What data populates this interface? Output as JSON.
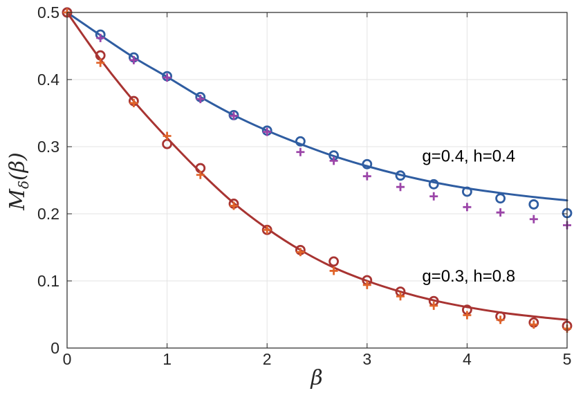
{
  "chart_data": {
    "type": "line",
    "xlabel": "β",
    "ylabel": "M_δ(β)",
    "xlim": [
      0,
      5
    ],
    "ylim": [
      0,
      0.5
    ],
    "xticks": [
      "0",
      "1",
      "2",
      "3",
      "4",
      "5"
    ],
    "yticks": [
      "0",
      "0.1",
      "0.2",
      "0.3",
      "0.4",
      "0.5"
    ],
    "grid": true,
    "annotations": [
      {
        "text": "g=0.4, h=0.4",
        "x": 3.55,
        "y": 0.286
      },
      {
        "text": "g=0.3, h=0.8",
        "x": 3.55,
        "y": 0.107
      }
    ],
    "series": [
      {
        "kind": "line",
        "color": "#2f5da1",
        "x": [
          0,
          0.3333,
          0.6667,
          1,
          1.3333,
          1.6667,
          2,
          2.3333,
          2.6667,
          3,
          3.3333,
          3.6667,
          4,
          4.3333,
          4.6667,
          5
        ],
        "values": [
          0.5,
          0.466,
          0.433,
          0.404,
          0.374,
          0.347,
          0.324,
          0.304,
          0.286,
          0.271,
          0.258,
          0.247,
          0.238,
          0.231,
          0.225,
          0.22
        ]
      },
      {
        "kind": "circle",
        "color": "#2f5da1",
        "x": [
          0,
          0.3333,
          0.6667,
          1,
          1.3333,
          1.6667,
          2,
          2.3333,
          2.6667,
          3,
          3.3333,
          3.6667,
          4,
          4.3333,
          4.6667,
          5
        ],
        "values": [
          0.5,
          0.467,
          0.433,
          0.405,
          0.374,
          0.347,
          0.324,
          0.308,
          0.287,
          0.274,
          0.257,
          0.244,
          0.233,
          0.223,
          0.214,
          0.201
        ]
      },
      {
        "kind": "plus",
        "color": "#9b45a8",
        "x": [
          0,
          0.3333,
          0.6667,
          1,
          1.3333,
          1.6667,
          2,
          2.3333,
          2.6667,
          3,
          3.3333,
          3.6667,
          4,
          4.3333,
          4.6667,
          5
        ],
        "values": [
          0.5,
          0.462,
          0.429,
          0.403,
          0.371,
          0.346,
          0.322,
          0.292,
          0.279,
          0.256,
          0.24,
          0.226,
          0.21,
          0.202,
          0.192,
          0.183
        ]
      },
      {
        "kind": "line",
        "color": "#a83432",
        "x": [
          0,
          0.3333,
          0.6667,
          1,
          1.3333,
          1.6667,
          2,
          2.3333,
          2.6667,
          3,
          3.3333,
          3.6667,
          4,
          4.3333,
          4.6667,
          5
        ],
        "values": [
          0.5,
          0.43,
          0.368,
          0.313,
          0.262,
          0.216,
          0.178,
          0.146,
          0.12,
          0.1,
          0.084,
          0.071,
          0.061,
          0.053,
          0.047,
          0.042
        ]
      },
      {
        "kind": "circle",
        "color": "#a83432",
        "x": [
          0,
          0.3333,
          0.6667,
          1,
          1.3333,
          1.6667,
          2,
          2.3333,
          2.6667,
          3,
          3.3333,
          3.6667,
          4,
          4.3333,
          4.6667,
          5
        ],
        "values": [
          0.5,
          0.436,
          0.368,
          0.304,
          0.268,
          0.215,
          0.176,
          0.146,
          0.129,
          0.101,
          0.084,
          0.07,
          0.057,
          0.047,
          0.038,
          0.033
        ]
      },
      {
        "kind": "plus",
        "color": "#e0642a",
        "x": [
          0,
          0.3333,
          0.6667,
          1,
          1.3333,
          1.6667,
          2,
          2.3333,
          2.6667,
          3,
          3.3333,
          3.6667,
          4,
          4.3333,
          4.6667,
          5
        ],
        "values": [
          0.5,
          0.425,
          0.365,
          0.316,
          0.258,
          0.212,
          0.176,
          0.143,
          0.115,
          0.094,
          0.077,
          0.063,
          0.049,
          0.042,
          0.035,
          0.029
        ]
      }
    ]
  }
}
